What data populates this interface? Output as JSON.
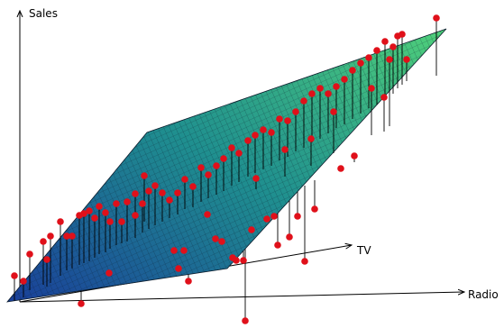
{
  "chart_data": {
    "type": "scatter",
    "title": "",
    "axes": {
      "vertical": "Sales",
      "depth": "TV",
      "horizontal": "Radio"
    },
    "surface": {
      "kind": "regression-plane",
      "colors": {
        "low": "#1a3f9a",
        "mid": "#1f8f8f",
        "high": "#4fd07a"
      }
    },
    "points": {
      "color": "#e0101a",
      "stem_color": "#000000"
    }
  }
}
